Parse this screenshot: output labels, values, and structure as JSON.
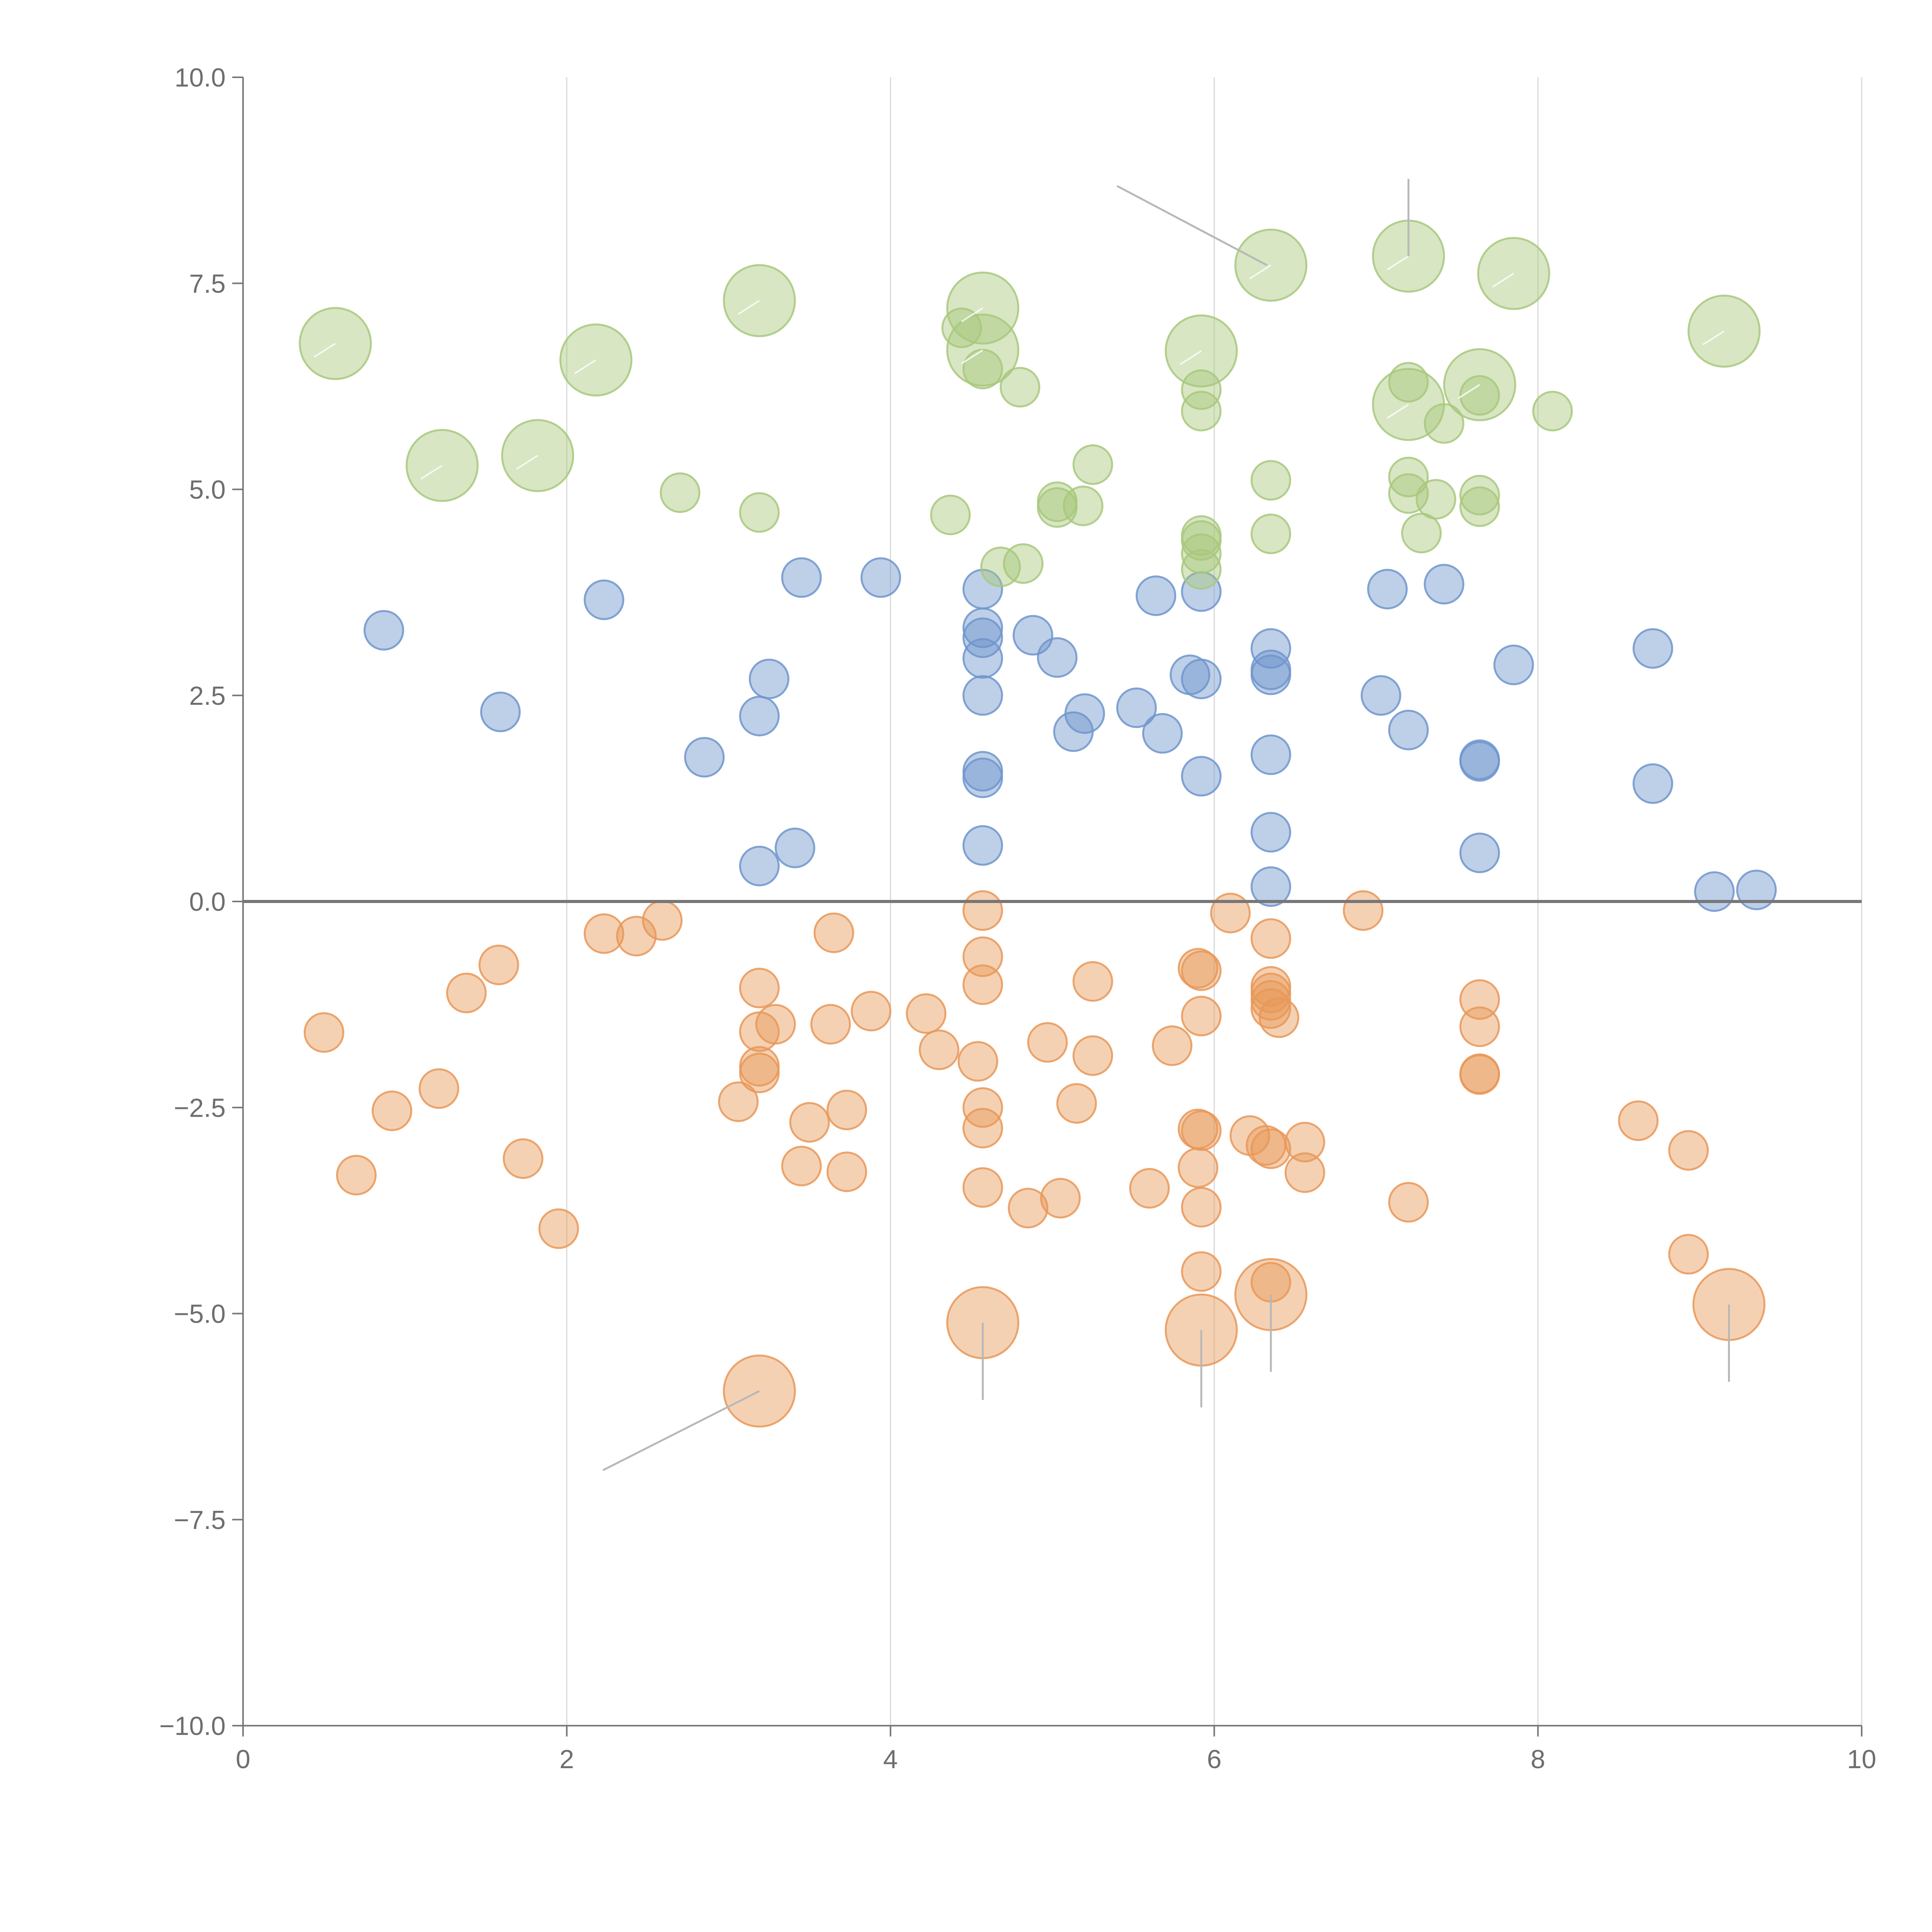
{
  "chart_data": {
    "type": "scatter",
    "title": "",
    "xlabel": "",
    "ylabel": "",
    "xlim": [
      0,
      10
    ],
    "ylim": [
      -10,
      10
    ],
    "x_ticks": [
      0,
      2,
      4,
      6,
      8,
      10
    ],
    "y_ticks": [
      -10,
      -7.5,
      -5,
      -2.5,
      0,
      2.5,
      5,
      7.5,
      10
    ],
    "x_tick_labels": [
      "0",
      "2",
      "4",
      "6",
      "8",
      "10"
    ],
    "y_tick_labels": [
      "−10.0",
      "−7.5",
      "−5.0",
      "−2.5",
      "0.0",
      "2.5",
      "5.0",
      "7.5",
      "10.0"
    ],
    "grid": "vertical",
    "zero_line": true,
    "point_opacity": 0.45,
    "series": [
      {
        "color": "#6f95cd",
        "points": [
          [
            0.87,
            3.29,
            1
          ],
          [
            1.59,
            2.3,
            1
          ],
          [
            2.23,
            3.66,
            1
          ],
          [
            2.85,
            1.75,
            1
          ],
          [
            3.19,
            2.25,
            1
          ],
          [
            3.19,
            0.43,
            1
          ],
          [
            3.25,
            2.7,
            1
          ],
          [
            3.41,
            0.65,
            1
          ],
          [
            3.45,
            3.93,
            1
          ],
          [
            3.94,
            3.93,
            1
          ],
          [
            4.57,
            3.79,
            1
          ],
          [
            4.57,
            3.32,
            1
          ],
          [
            4.57,
            3.2,
            1
          ],
          [
            4.57,
            2.95,
            1
          ],
          [
            4.57,
            2.5,
            1
          ],
          [
            4.57,
            1.58,
            1
          ],
          [
            4.57,
            1.5,
            1
          ],
          [
            4.57,
            0.68,
            1
          ],
          [
            4.88,
            3.23,
            1
          ],
          [
            5.03,
            2.96,
            1
          ],
          [
            5.13,
            2.06,
            1
          ],
          [
            5.2,
            2.28,
            1
          ],
          [
            5.52,
            2.35,
            1
          ],
          [
            5.64,
            3.71,
            1
          ],
          [
            5.68,
            2.04,
            1
          ],
          [
            5.85,
            2.75,
            1
          ],
          [
            5.92,
            3.76,
            1
          ],
          [
            5.92,
            2.7,
            1
          ],
          [
            5.92,
            1.52,
            1
          ],
          [
            6.35,
            3.07,
            1
          ],
          [
            6.35,
            2.81,
            1
          ],
          [
            6.35,
            2.75,
            1
          ],
          [
            6.35,
            1.78,
            1
          ],
          [
            6.35,
            0.84,
            1
          ],
          [
            6.35,
            0.18,
            1
          ],
          [
            7.03,
            2.5,
            1
          ],
          [
            7.07,
            3.79,
            1
          ],
          [
            7.2,
            2.08,
            1
          ],
          [
            7.42,
            3.85,
            1
          ],
          [
            7.64,
            1.72,
            1
          ],
          [
            7.64,
            1.7,
            1
          ],
          [
            7.64,
            0.59,
            1
          ],
          [
            7.85,
            2.87,
            1
          ],
          [
            8.71,
            3.07,
            1
          ],
          [
            8.71,
            1.43,
            1
          ],
          [
            9.09,
            0.12,
            1
          ],
          [
            9.35,
            0.14,
            1
          ]
        ]
      },
      {
        "color": "#e89858",
        "points": [
          [
            0.5,
            -1.59,
            1
          ],
          [
            0.7,
            -3.32,
            1
          ],
          [
            0.92,
            -2.54,
            1
          ],
          [
            1.21,
            -2.27,
            1
          ],
          [
            1.38,
            -1.11,
            1
          ],
          [
            1.58,
            -0.77,
            1
          ],
          [
            1.73,
            -3.12,
            1
          ],
          [
            1.95,
            -3.97,
            1
          ],
          [
            2.23,
            -0.39,
            1
          ],
          [
            2.43,
            -0.42,
            1
          ],
          [
            2.59,
            -0.23,
            1
          ],
          [
            3.06,
            -2.43,
            1
          ],
          [
            3.19,
            -1.05,
            1
          ],
          [
            3.19,
            -1.58,
            1
          ],
          [
            3.19,
            -2.0,
            1
          ],
          [
            3.19,
            -2.08,
            1
          ],
          [
            3.19,
            -5.94,
            3
          ],
          [
            3.29,
            -1.49,
            1
          ],
          [
            3.45,
            -3.21,
            1
          ],
          [
            3.5,
            -2.68,
            1
          ],
          [
            3.63,
            -1.49,
            1
          ],
          [
            3.65,
            -0.38,
            1
          ],
          [
            3.73,
            -2.53,
            1
          ],
          [
            3.73,
            -3.28,
            1
          ],
          [
            3.88,
            -1.33,
            1
          ],
          [
            4.22,
            -1.36,
            1
          ],
          [
            4.3,
            -1.8,
            1
          ],
          [
            4.54,
            -1.94,
            1
          ],
          [
            4.57,
            -0.11,
            1
          ],
          [
            4.57,
            -0.67,
            1
          ],
          [
            4.57,
            -1.01,
            1
          ],
          [
            4.57,
            -2.5,
            1
          ],
          [
            4.57,
            -2.75,
            1
          ],
          [
            4.57,
            -3.47,
            1
          ],
          [
            4.57,
            -5.11,
            3
          ],
          [
            4.85,
            -3.72,
            1
          ],
          [
            4.97,
            -1.71,
            1
          ],
          [
            5.05,
            -3.6,
            1
          ],
          [
            5.15,
            -2.45,
            1
          ],
          [
            5.25,
            -0.97,
            1
          ],
          [
            5.25,
            -1.87,
            1
          ],
          [
            5.6,
            -3.48,
            1
          ],
          [
            5.74,
            -1.75,
            1
          ],
          [
            5.9,
            -0.81,
            1
          ],
          [
            5.9,
            -2.76,
            1
          ],
          [
            5.9,
            -3.23,
            1
          ],
          [
            5.92,
            -0.84,
            1
          ],
          [
            5.92,
            -1.39,
            1
          ],
          [
            5.92,
            -2.78,
            1
          ],
          [
            5.92,
            -3.71,
            1
          ],
          [
            5.92,
            -4.49,
            1
          ],
          [
            5.92,
            -5.2,
            3
          ],
          [
            6.1,
            -0.14,
            1
          ],
          [
            6.22,
            -2.84,
            1
          ],
          [
            6.32,
            -2.96,
            1
          ],
          [
            6.35,
            -0.45,
            1
          ],
          [
            6.35,
            -1.03,
            1
          ],
          [
            6.35,
            -1.11,
            1
          ],
          [
            6.35,
            -1.2,
            1
          ],
          [
            6.35,
            -1.3,
            1
          ],
          [
            6.35,
            -3.0,
            1
          ],
          [
            6.35,
            -4.62,
            1
          ],
          [
            6.35,
            -4.77,
            3
          ],
          [
            6.4,
            -1.41,
            1
          ],
          [
            6.56,
            -2.92,
            1
          ],
          [
            6.56,
            -3.29,
            1
          ],
          [
            6.92,
            -0.11,
            1
          ],
          [
            7.2,
            -3.65,
            1
          ],
          [
            7.64,
            -1.19,
            1
          ],
          [
            7.64,
            -1.52,
            1
          ],
          [
            7.64,
            -2.09,
            1
          ],
          [
            7.64,
            -2.1,
            1
          ],
          [
            8.62,
            -2.66,
            1
          ],
          [
            8.93,
            -3.02,
            1
          ],
          [
            8.93,
            -4.28,
            1
          ],
          [
            9.18,
            -4.89,
            3
          ]
        ]
      },
      {
        "color": "#a8c87c",
        "points": [
          [
            0.57,
            6.77,
            3
          ],
          [
            1.23,
            5.29,
            3
          ],
          [
            1.82,
            5.41,
            3
          ],
          [
            2.18,
            6.57,
            3
          ],
          [
            2.7,
            4.96,
            1
          ],
          [
            3.19,
            7.29,
            3
          ],
          [
            3.19,
            4.72,
            1
          ],
          [
            4.37,
            4.69,
            1
          ],
          [
            4.44,
            6.96,
            1
          ],
          [
            4.57,
            7.2,
            3
          ],
          [
            4.57,
            6.69,
            3
          ],
          [
            4.57,
            6.46,
            1
          ],
          [
            4.68,
            4.06,
            1
          ],
          [
            4.8,
            6.24,
            1
          ],
          [
            4.82,
            4.1,
            1
          ],
          [
            5.03,
            4.78,
            1
          ],
          [
            5.03,
            4.85,
            1
          ],
          [
            5.19,
            4.8,
            1
          ],
          [
            5.25,
            5.3,
            1
          ],
          [
            5.92,
            6.68,
            3
          ],
          [
            5.92,
            6.21,
            1
          ],
          [
            5.92,
            5.95,
            1
          ],
          [
            5.92,
            4.44,
            1
          ],
          [
            5.92,
            4.38,
            1
          ],
          [
            5.92,
            4.22,
            1
          ],
          [
            5.92,
            4.03,
            1
          ],
          [
            6.35,
            7.72,
            3
          ],
          [
            6.35,
            5.11,
            1
          ],
          [
            6.35,
            4.46,
            1
          ],
          [
            7.2,
            7.83,
            3
          ],
          [
            7.2,
            6.03,
            3
          ],
          [
            7.2,
            6.3,
            1
          ],
          [
            7.2,
            5.15,
            1
          ],
          [
            7.2,
            4.95,
            1
          ],
          [
            7.28,
            4.47,
            1
          ],
          [
            7.37,
            4.88,
            1
          ],
          [
            7.42,
            5.8,
            1
          ],
          [
            7.64,
            6.27,
            3
          ],
          [
            7.64,
            6.14,
            1
          ],
          [
            7.64,
            4.93,
            1
          ],
          [
            7.64,
            4.79,
            1
          ],
          [
            7.85,
            7.62,
            3
          ],
          [
            8.09,
            5.95,
            1
          ],
          [
            9.15,
            6.92,
            3
          ]
        ]
      }
    ]
  }
}
